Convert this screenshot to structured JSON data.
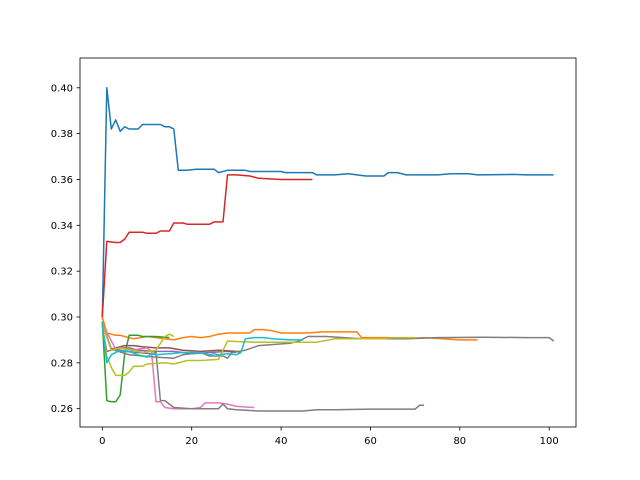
{
  "chart_data": {
    "type": "line",
    "title": "",
    "xlabel": "",
    "ylabel": "",
    "xlim": [
      -5,
      106
    ],
    "ylim": [
      0.252,
      0.413
    ],
    "x_ticks": [
      0,
      20,
      40,
      60,
      80,
      100
    ],
    "y_ticks": [
      0.26,
      0.28,
      0.3,
      0.32,
      0.34,
      0.36,
      0.38,
      0.4
    ],
    "x_tick_labels": [
      "0",
      "20",
      "40",
      "60",
      "80",
      "100"
    ],
    "y_tick_labels": [
      "0.26",
      "0.28",
      "0.30",
      "0.32",
      "0.34",
      "0.36",
      "0.38",
      "0.40"
    ],
    "grid": false,
    "legend": "none",
    "series": [
      {
        "color": "#1f77b4",
        "points": [
          [
            0,
            0.299
          ],
          [
            1,
            0.4
          ],
          [
            2,
            0.382
          ],
          [
            3,
            0.386
          ],
          [
            4,
            0.381
          ],
          [
            5,
            0.383
          ],
          [
            6,
            0.382
          ],
          [
            8,
            0.382
          ],
          [
            9,
            0.384
          ],
          [
            13,
            0.384
          ],
          [
            14,
            0.383
          ],
          [
            15,
            0.383
          ],
          [
            16,
            0.382
          ],
          [
            17,
            0.364
          ],
          [
            19,
            0.364
          ],
          [
            21,
            0.3645
          ],
          [
            25,
            0.3645
          ],
          [
            26,
            0.363
          ],
          [
            28,
            0.364
          ],
          [
            32,
            0.364
          ],
          [
            33,
            0.3635
          ],
          [
            40,
            0.3635
          ],
          [
            41,
            0.363
          ],
          [
            47,
            0.363
          ],
          [
            48,
            0.362
          ],
          [
            52,
            0.362
          ],
          [
            55,
            0.3625
          ],
          [
            57,
            0.362
          ],
          [
            59,
            0.3615
          ],
          [
            63,
            0.3615
          ],
          [
            64,
            0.363
          ],
          [
            66,
            0.363
          ],
          [
            68,
            0.362
          ],
          [
            75,
            0.362
          ],
          [
            78,
            0.3625
          ],
          [
            82,
            0.3625
          ],
          [
            84,
            0.362
          ],
          [
            92,
            0.3622
          ],
          [
            95,
            0.362
          ],
          [
            101,
            0.362
          ]
        ]
      },
      {
        "color": "#d62728",
        "points": [
          [
            0,
            0.3
          ],
          [
            1,
            0.333
          ],
          [
            3,
            0.3325
          ],
          [
            4,
            0.3325
          ],
          [
            5,
            0.334
          ],
          [
            6,
            0.337
          ],
          [
            9,
            0.337
          ],
          [
            10,
            0.3365
          ],
          [
            12,
            0.3365
          ],
          [
            13,
            0.3375
          ],
          [
            15,
            0.3375
          ],
          [
            16,
            0.341
          ],
          [
            18,
            0.341
          ],
          [
            19,
            0.3405
          ],
          [
            24,
            0.3405
          ],
          [
            25,
            0.3415
          ],
          [
            27,
            0.3415
          ],
          [
            28,
            0.362
          ],
          [
            30,
            0.362
          ],
          [
            33,
            0.3615
          ],
          [
            35,
            0.3605
          ],
          [
            40,
            0.36
          ],
          [
            47,
            0.36
          ]
        ]
      },
      {
        "color": "#ff7f0e",
        "points": [
          [
            0,
            0.3
          ],
          [
            1,
            0.293
          ],
          [
            3,
            0.292
          ],
          [
            4,
            0.292
          ],
          [
            5,
            0.2915
          ],
          [
            7,
            0.2905
          ],
          [
            10,
            0.2915
          ],
          [
            12,
            0.291
          ],
          [
            16,
            0.29
          ],
          [
            18,
            0.291
          ],
          [
            20,
            0.2915
          ],
          [
            22,
            0.291
          ],
          [
            24,
            0.2915
          ],
          [
            26,
            0.2925
          ],
          [
            28,
            0.293
          ],
          [
            33,
            0.293
          ],
          [
            34,
            0.2945
          ],
          [
            36,
            0.2945
          ],
          [
            38,
            0.294
          ],
          [
            40,
            0.293
          ],
          [
            46,
            0.293
          ],
          [
            49,
            0.2935
          ],
          [
            54,
            0.2935
          ],
          [
            57,
            0.2935
          ],
          [
            58,
            0.291
          ],
          [
            64,
            0.291
          ],
          [
            68,
            0.2905
          ],
          [
            72,
            0.291
          ],
          [
            76,
            0.2905
          ],
          [
            80,
            0.29
          ],
          [
            84,
            0.29
          ]
        ]
      },
      {
        "color": "#2ca02c",
        "points": [
          [
            0,
            0.298
          ],
          [
            1,
            0.2635
          ],
          [
            2,
            0.263
          ],
          [
            3,
            0.263
          ],
          [
            4,
            0.266
          ],
          [
            5,
            0.284
          ],
          [
            6,
            0.292
          ],
          [
            8,
            0.292
          ],
          [
            9,
            0.2915
          ],
          [
            12,
            0.2915
          ],
          [
            15,
            0.291
          ]
        ]
      },
      {
        "color": "#9467bd",
        "points": [
          [
            0,
            0.296
          ],
          [
            1,
            0.285
          ],
          [
            4,
            0.2865
          ],
          [
            6,
            0.2865
          ],
          [
            8,
            0.2855
          ],
          [
            12,
            0.285
          ],
          [
            16,
            0.285
          ],
          [
            20,
            0.284
          ],
          [
            24,
            0.2845
          ],
          [
            28,
            0.285
          ],
          [
            30,
            0.2845
          ]
        ]
      },
      {
        "color": "#8c564b",
        "points": [
          [
            0,
            0.297
          ],
          [
            2,
            0.286
          ],
          [
            5,
            0.2875
          ],
          [
            7,
            0.2875
          ],
          [
            9,
            0.287
          ],
          [
            12,
            0.2865
          ],
          [
            15,
            0.2865
          ],
          [
            18,
            0.2855
          ],
          [
            22,
            0.285
          ],
          [
            26,
            0.2855
          ],
          [
            30,
            0.285
          ],
          [
            31,
            0.2845
          ]
        ]
      },
      {
        "color": "#e377c2",
        "points": [
          [
            0,
            0.297
          ],
          [
            3,
            0.286
          ],
          [
            6,
            0.285
          ],
          [
            8,
            0.286
          ],
          [
            10,
            0.2865
          ],
          [
            11,
            0.285
          ],
          [
            12,
            0.263
          ],
          [
            13,
            0.263
          ],
          [
            14,
            0.2605
          ],
          [
            16,
            0.26
          ],
          [
            20,
            0.26
          ],
          [
            22,
            0.2605
          ],
          [
            23,
            0.2625
          ],
          [
            26,
            0.2625
          ],
          [
            28,
            0.262
          ],
          [
            30,
            0.261
          ],
          [
            34,
            0.2605
          ]
        ]
      },
      {
        "color": "#7f7f7f",
        "points": [
          [
            0,
            0.297
          ],
          [
            2,
            0.286
          ],
          [
            5,
            0.285
          ],
          [
            8,
            0.2845
          ],
          [
            11,
            0.284
          ],
          [
            12,
            0.2845
          ],
          [
            13,
            0.2635
          ],
          [
            14,
            0.2635
          ],
          [
            16,
            0.2605
          ],
          [
            20,
            0.26
          ],
          [
            26,
            0.26
          ],
          [
            27,
            0.262
          ],
          [
            28,
            0.26
          ],
          [
            30,
            0.2595
          ],
          [
            35,
            0.259
          ],
          [
            45,
            0.259
          ],
          [
            48,
            0.2595
          ],
          [
            52,
            0.2595
          ],
          [
            60,
            0.2598
          ],
          [
            70,
            0.2598
          ],
          [
            71,
            0.2615
          ],
          [
            72,
            0.2615
          ]
        ]
      },
      {
        "color": "#7f7f7f",
        "points": [
          [
            0,
            0.297
          ],
          [
            2,
            0.286
          ],
          [
            6,
            0.2835
          ],
          [
            9,
            0.283
          ],
          [
            12,
            0.2825
          ],
          [
            16,
            0.282
          ],
          [
            18,
            0.2835
          ],
          [
            22,
            0.2845
          ],
          [
            24,
            0.283
          ],
          [
            27,
            0.283
          ],
          [
            28,
            0.282
          ],
          [
            29,
            0.2845
          ],
          [
            32,
            0.2855
          ],
          [
            35,
            0.2875
          ],
          [
            42,
            0.2885
          ],
          [
            44,
            0.2895
          ],
          [
            46,
            0.2915
          ],
          [
            50,
            0.2915
          ],
          [
            58,
            0.2905
          ],
          [
            68,
            0.2905
          ],
          [
            75,
            0.291
          ],
          [
            85,
            0.2912
          ],
          [
            95,
            0.291
          ],
          [
            100,
            0.291
          ],
          [
            101,
            0.2895
          ]
        ]
      },
      {
        "color": "#bcbd22",
        "points": [
          [
            0,
            0.297
          ],
          [
            1,
            0.283
          ],
          [
            2,
            0.278
          ],
          [
            3,
            0.2745
          ],
          [
            5,
            0.2745
          ],
          [
            6,
            0.276
          ],
          [
            7,
            0.2785
          ],
          [
            9,
            0.2785
          ],
          [
            10,
            0.2795
          ],
          [
            14,
            0.28
          ],
          [
            16,
            0.2795
          ],
          [
            19,
            0.281
          ],
          [
            22,
            0.281
          ],
          [
            26,
            0.2815
          ],
          [
            28,
            0.2895
          ],
          [
            34,
            0.289
          ],
          [
            48,
            0.289
          ],
          [
            52,
            0.2905
          ],
          [
            58,
            0.2905
          ],
          [
            63,
            0.2905
          ],
          [
            65,
            0.291
          ],
          [
            70,
            0.291
          ]
        ]
      },
      {
        "color": "#bcbd22",
        "points": [
          [
            0,
            0.297
          ],
          [
            2,
            0.2855
          ],
          [
            4,
            0.2865
          ],
          [
            7,
            0.2855
          ],
          [
            9,
            0.2845
          ],
          [
            12,
            0.2855
          ],
          [
            14,
            0.2915
          ],
          [
            15,
            0.2925
          ],
          [
            16,
            0.2915
          ]
        ]
      },
      {
        "color": "#17becf",
        "points": [
          [
            0,
            0.297
          ],
          [
            1,
            0.28
          ],
          [
            2,
            0.2835
          ],
          [
            4,
            0.2855
          ],
          [
            6,
            0.285
          ],
          [
            8,
            0.2835
          ],
          [
            10,
            0.2825
          ],
          [
            11,
            0.284
          ],
          [
            12,
            0.2835
          ],
          [
            15,
            0.284
          ],
          [
            18,
            0.2845
          ],
          [
            22,
            0.2845
          ],
          [
            24,
            0.2835
          ],
          [
            25,
            0.284
          ],
          [
            26,
            0.2835
          ],
          [
            28,
            0.284
          ],
          [
            30,
            0.2835
          ],
          [
            31,
            0.2845
          ],
          [
            32,
            0.2905
          ],
          [
            34,
            0.291
          ],
          [
            36,
            0.291
          ],
          [
            38,
            0.2905
          ],
          [
            42,
            0.29
          ],
          [
            45,
            0.29
          ]
        ]
      }
    ]
  }
}
